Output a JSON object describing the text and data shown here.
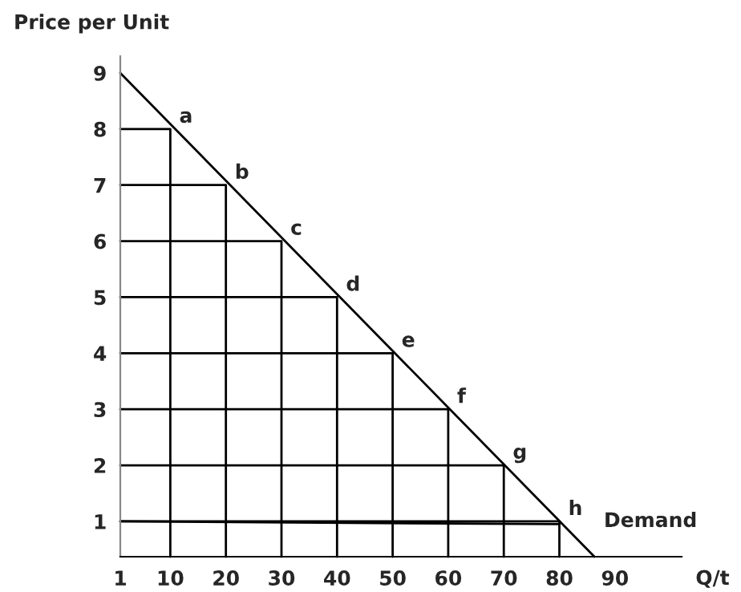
{
  "chart_data": {
    "type": "line",
    "ylabel": "Price per Unit",
    "xlabel": "Q/t",
    "xlim": [
      1,
      102
    ],
    "ylim": [
      0.37,
      9.3
    ],
    "xticks": [
      1,
      10,
      20,
      30,
      40,
      50,
      60,
      70,
      80,
      90
    ],
    "yticks": [
      1,
      2,
      3,
      4,
      5,
      6,
      7,
      8,
      9
    ],
    "grid": false,
    "legend": false,
    "marker": "none",
    "line_style": "solid",
    "series": [
      {
        "name": "Demand",
        "color": "#000000",
        "x": [
          1,
          86.3
        ],
        "values": [
          9,
          0.37
        ]
      },
      {
        "color": "#000000",
        "x": [
          1,
          80
        ],
        "values": [
          1,
          0.95
        ]
      },
      {
        "color": "#000000",
        "x": [
          1,
          10,
          10
        ],
        "values": [
          8,
          8,
          0.37
        ]
      },
      {
        "color": "#000000",
        "x": [
          1,
          20,
          20
        ],
        "values": [
          7,
          7,
          0.37
        ]
      },
      {
        "color": "#000000",
        "x": [
          1,
          30,
          30
        ],
        "values": [
          6,
          6,
          0.37
        ]
      },
      {
        "color": "#000000",
        "x": [
          1,
          40,
          40
        ],
        "values": [
          5,
          5,
          0.37
        ]
      },
      {
        "color": "#000000",
        "x": [
          1,
          50,
          50
        ],
        "values": [
          4,
          4,
          0.37
        ]
      },
      {
        "color": "#000000",
        "x": [
          1,
          60,
          60
        ],
        "values": [
          3,
          3,
          0.37
        ]
      },
      {
        "color": "#000000",
        "x": [
          1,
          70,
          70
        ],
        "values": [
          2,
          2,
          0.37
        ]
      },
      {
        "color": "#000000",
        "x": [
          1,
          80,
          80
        ],
        "values": [
          1,
          1,
          0.37
        ]
      }
    ],
    "annotations": [
      {
        "text": "a",
        "x": 10,
        "y": 8
      },
      {
        "text": "b",
        "x": 20,
        "y": 7
      },
      {
        "text": "c",
        "x": 30,
        "y": 6
      },
      {
        "text": "d",
        "x": 40,
        "y": 5
      },
      {
        "text": "e",
        "x": 50,
        "y": 4
      },
      {
        "text": "f",
        "x": 60,
        "y": 3
      },
      {
        "text": "g",
        "x": 70,
        "y": 2
      },
      {
        "text": "h",
        "x": 80,
        "y": 1
      }
    ]
  }
}
